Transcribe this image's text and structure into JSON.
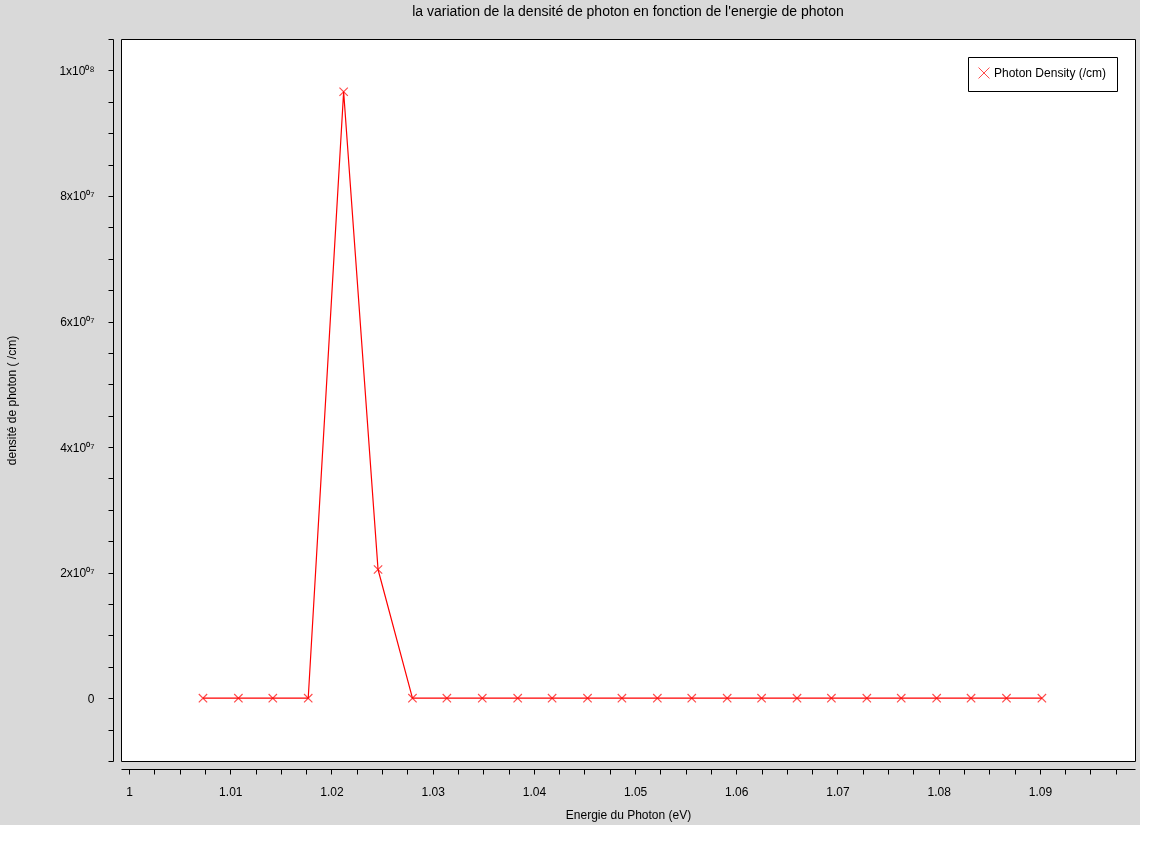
{
  "chart_data": {
    "type": "line",
    "title": "la variation de la densité de photon en fonction de l'energie de photon",
    "xlabel": "Energie du Photon (eV)",
    "ylabel": "densité de photon ( /cm)",
    "x": [
      1.0073,
      1.0108,
      1.0142,
      1.0177,
      1.0212,
      1.0246,
      1.028,
      1.0314,
      1.0349,
      1.0384,
      1.0418,
      1.0453,
      1.0487,
      1.0522,
      1.0556,
      1.0591,
      1.0625,
      1.066,
      1.0694,
      1.0729,
      1.0763,
      1.0798,
      1.0832,
      1.0867,
      1.0902
    ],
    "series": [
      {
        "name": "Photon Density (/cm)",
        "color": "#ff0000",
        "values": [
          0,
          0,
          0,
          0,
          96600000.0,
          20500000.0,
          0,
          0,
          0,
          0,
          0,
          0,
          0,
          0,
          0,
          0,
          0,
          0,
          0,
          0,
          0,
          0,
          0,
          0,
          0
        ]
      }
    ],
    "marker": "cross",
    "legend": "top right",
    "grid": false,
    "xlim": [
      0.9992,
      1.0994
    ],
    "ylim": [
      -10000000.0,
      105000000.0
    ],
    "xticks": [
      1,
      {
        "value": 1.0025,
        "label": null
      },
      {
        "value": 1.005,
        "label": null
      },
      {
        "value": 1.0075,
        "label": null
      },
      1.01,
      {
        "value": 1.0125,
        "label": null
      },
      {
        "value": 1.015,
        "label": null
      },
      {
        "value": 1.0175,
        "label": null
      },
      1.02,
      {
        "value": 1.0225,
        "label": null
      },
      {
        "value": 1.025,
        "label": null
      },
      {
        "value": 1.0275,
        "label": null
      },
      1.03,
      {
        "value": 1.0325,
        "label": null
      },
      {
        "value": 1.035,
        "label": null
      },
      {
        "value": 1.0375,
        "label": null
      },
      1.04,
      {
        "value": 1.0425,
        "label": null
      },
      {
        "value": 1.045,
        "label": null
      },
      {
        "value": 1.0475,
        "label": null
      },
      1.05,
      {
        "value": 1.0525,
        "label": null
      },
      {
        "value": 1.055,
        "label": null
      },
      {
        "value": 1.0575,
        "label": null
      },
      1.06,
      {
        "value": 1.0625,
        "label": null
      },
      {
        "value": 1.065,
        "label": null
      },
      {
        "value": 1.0675,
        "label": null
      },
      1.07,
      {
        "value": 1.0725,
        "label": null
      },
      {
        "value": 1.075,
        "label": null
      },
      {
        "value": 1.0775,
        "label": null
      },
      1.08,
      {
        "value": 1.0825,
        "label": null
      },
      {
        "value": 1.085,
        "label": null
      },
      {
        "value": 1.0875,
        "label": null
      },
      1.09,
      {
        "value": 1.0925,
        "label": null
      },
      {
        "value": 1.095,
        "label": null
      },
      {
        "value": 1.0975,
        "label": null
      }
    ],
    "yticks": [
      {
        "value": -10000000.0,
        "label": null
      },
      {
        "value": -5000000.0,
        "label": null
      },
      0,
      {
        "value": 5000000.0,
        "label": null
      },
      {
        "value": 10000000.0,
        "label": null
      },
      {
        "value": 15000000.0,
        "label": null
      },
      {
        "value": 20000000.0,
        "label": "2x10⁰⁷"
      },
      {
        "value": 25000000.0,
        "label": null
      },
      {
        "value": 30000000.0,
        "label": null
      },
      {
        "value": 35000000.0,
        "label": null
      },
      {
        "value": 40000000.0,
        "label": "4x10⁰⁷"
      },
      {
        "value": 45000000.0,
        "label": null
      },
      {
        "value": 50000000.0,
        "label": null
      },
      {
        "value": 55000000.0,
        "label": null
      },
      {
        "value": 60000000.0,
        "label": "6x10⁰⁷"
      },
      {
        "value": 65000000.0,
        "label": null
      },
      {
        "value": 70000000.0,
        "label": null
      },
      {
        "value": 75000000.0,
        "label": null
      },
      {
        "value": 80000000.0,
        "label": "8x10⁰⁷"
      },
      {
        "value": 85000000.0,
        "label": null
      },
      {
        "value": 90000000.0,
        "label": null
      },
      {
        "value": 95000000.0,
        "label": null
      },
      {
        "value": 100000000.0,
        "label": "1x10⁰⁸"
      },
      {
        "value": 105000000.0,
        "label": null
      }
    ]
  }
}
